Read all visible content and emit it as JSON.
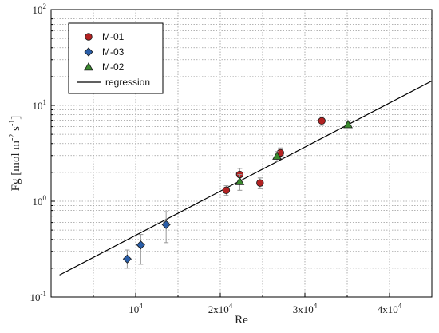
{
  "chart_data": {
    "type": "scatter",
    "xlabel": "Re",
    "ylabel": "Fg [mol m^-2 s^-1]",
    "ylabel_parts": {
      "base": "Fg [mol m",
      "exp1": "-2",
      "mid": " s",
      "exp2": "-1",
      "end": "]"
    },
    "xlim": [
      0,
      45000
    ],
    "ylim": [
      0.1,
      100
    ],
    "yscale": "log",
    "grid": true,
    "legend_position": "top-left",
    "x_ticks": [
      {
        "value": 10000,
        "base": "10",
        "exp": "4"
      },
      {
        "value": 20000,
        "base": "2x10",
        "exp": "4"
      },
      {
        "value": 30000,
        "base": "3x10",
        "exp": "4"
      },
      {
        "value": 40000,
        "base": "4x10",
        "exp": "4"
      }
    ],
    "y_ticks": [
      {
        "value": 0.1,
        "base": "10",
        "exp": "-1"
      },
      {
        "value": 1,
        "base": "10",
        "exp": "0"
      },
      {
        "value": 10,
        "base": "10",
        "exp": "1"
      },
      {
        "value": 100,
        "base": "10",
        "exp": "2"
      }
    ],
    "series": [
      {
        "name": "M-01",
        "marker": "circle",
        "color": "#b22222",
        "points": [
          {
            "x": 20700,
            "y": 1.3,
            "lo": 1.15,
            "hi": 1.45
          },
          {
            "x": 22300,
            "y": 1.9,
            "lo": 1.65,
            "hi": 2.2
          },
          {
            "x": 24700,
            "y": 1.55,
            "lo": 1.35,
            "hi": 1.75
          },
          {
            "x": 27100,
            "y": 3.2,
            "lo": 2.8,
            "hi": 3.6
          },
          {
            "x": 32000,
            "y": 6.9,
            "lo": 6.2,
            "hi": 7.6
          }
        ]
      },
      {
        "name": "M-03",
        "marker": "diamond",
        "color": "#2a5ea8",
        "points": [
          {
            "x": 9000,
            "y": 0.25,
            "lo": 0.2,
            "hi": 0.31
          },
          {
            "x": 10600,
            "y": 0.35,
            "lo": 0.22,
            "hi": 0.45
          },
          {
            "x": 13600,
            "y": 0.57,
            "lo": 0.37,
            "hi": 0.78
          }
        ]
      },
      {
        "name": "M-02",
        "marker": "triangle",
        "color": "#3a8a2e",
        "points": [
          {
            "x": 22300,
            "y": 1.6,
            "lo": 1.3,
            "hi": 1.9
          },
          {
            "x": 26700,
            "y": 2.95,
            "lo": 2.6,
            "hi": 3.3
          },
          {
            "x": 35100,
            "y": 6.3,
            "lo": 5.9,
            "hi": 6.7
          }
        ]
      }
    ],
    "regression": {
      "name": "regression",
      "x": [
        1000,
        45000
      ],
      "y": [
        0.17,
        18.0
      ]
    }
  }
}
